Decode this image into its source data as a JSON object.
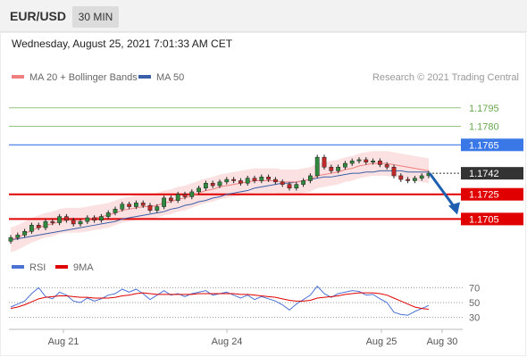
{
  "header": {
    "symbol": "EUR/USD",
    "timeframe": "30 MIN",
    "datetime": "Wednesday, August 25, 2021 7:01:33 AM CET"
  },
  "chart_data": {
    "type": "candlestick",
    "legend": [
      {
        "label": "MA 20 + Bollinger Bands",
        "color": "#f08080"
      },
      {
        "label": "MA 50",
        "color": "#3a5fa8"
      }
    ],
    "credit": "Research © 2021 Trading Central",
    "x_ticks": [
      "Aug 21",
      "Aug 24",
      "Aug 25",
      "Aug 30"
    ],
    "y_range": [
      1.168,
      1.181
    ],
    "levels": [
      {
        "label": "1.1795",
        "value": 1.1795,
        "color": "#6aa84f",
        "style": "thin"
      },
      {
        "label": "1.1780",
        "value": 1.178,
        "color": "#6aa84f",
        "style": "thin"
      },
      {
        "label": "1.1765",
        "value": 1.1765,
        "color": "#3b78e7",
        "style": "resistance"
      },
      {
        "label": "1.1742",
        "value": 1.1742,
        "color": "#333333",
        "style": "last"
      },
      {
        "label": "1.1725",
        "value": 1.1725,
        "color": "#e00000",
        "style": "support"
      },
      {
        "label": "1.1705",
        "value": 1.1705,
        "color": "#e00000",
        "style": "support"
      }
    ],
    "forecast_arrow": {
      "from": 1.1742,
      "to": 1.171,
      "color": "#1f5fb0"
    },
    "close_path": [
      1.169,
      1.1692,
      1.1695,
      1.17,
      1.1698,
      1.1703,
      1.1702,
      1.1707,
      1.1704,
      1.1701,
      1.1703,
      1.1706,
      1.1704,
      1.1707,
      1.171,
      1.1713,
      1.1717,
      1.1715,
      1.1718,
      1.1716,
      1.1712,
      1.1715,
      1.1722,
      1.172,
      1.1725,
      1.1723,
      1.1727,
      1.173,
      1.1734,
      1.1732,
      1.1735,
      1.1737,
      1.1736,
      1.1734,
      1.1738,
      1.1736,
      1.1739,
      1.1737,
      1.1735,
      1.1733,
      1.173,
      1.1733,
      1.1736,
      1.174,
      1.1755,
      1.1747,
      1.1744,
      1.1747,
      1.175,
      1.1752,
      1.1753,
      1.1751,
      1.1752,
      1.1749,
      1.1747,
      1.174,
      1.1737,
      1.1736,
      1.1738,
      1.174,
      1.1742
    ],
    "ma20": [
      1.1688,
      1.169,
      1.1693,
      1.1696,
      1.1698,
      1.17,
      1.1701,
      1.1703,
      1.1704,
      1.1704,
      1.1704,
      1.1705,
      1.1706,
      1.1707,
      1.1708,
      1.171,
      1.1712,
      1.1713,
      1.1714,
      1.1715,
      1.1715,
      1.1716,
      1.1718,
      1.1719,
      1.1721,
      1.1722,
      1.1724,
      1.1726,
      1.1728,
      1.1729,
      1.1731,
      1.1732,
      1.1733,
      1.1734,
      1.1735,
      1.1736,
      1.1736,
      1.1736,
      1.1736,
      1.1735,
      1.1735,
      1.1735,
      1.1736,
      1.1737,
      1.174,
      1.1741,
      1.1742,
      1.1743,
      1.1745,
      1.1746,
      1.1748,
      1.1749,
      1.175,
      1.175,
      1.175,
      1.1749,
      1.1748,
      1.1747,
      1.1746,
      1.1745,
      1.1744
    ],
    "ma50": [
      1.1688,
      1.1689,
      1.169,
      1.1691,
      1.1692,
      1.1693,
      1.1694,
      1.1695,
      1.1696,
      1.1697,
      1.1698,
      1.1699,
      1.17,
      1.1701,
      1.1702,
      1.1703,
      1.1705,
      1.1706,
      1.1707,
      1.1708,
      1.1709,
      1.171,
      1.1711,
      1.1713,
      1.1714,
      1.1716,
      1.1717,
      1.1719,
      1.172,
      1.1722,
      1.1723,
      1.1725,
      1.1726,
      1.1727,
      1.1728,
      1.173,
      1.1731,
      1.1732,
      1.1733,
      1.1734,
      1.1734,
      1.1735,
      1.1736,
      1.1737,
      1.1738,
      1.1739,
      1.1739,
      1.174,
      1.1741,
      1.1742,
      1.1742,
      1.1743,
      1.1743,
      1.1744,
      1.1744,
      1.1744,
      1.1744,
      1.1743,
      1.1743,
      1.1743,
      1.1743
    ],
    "bb_width": 0.001,
    "rsi_panel": {
      "legend": [
        {
          "label": "RSI",
          "color": "#4a72d4"
        },
        {
          "label": "9MA",
          "color": "#e00000"
        }
      ],
      "y_ticks": [
        "70",
        "50",
        "30"
      ],
      "y_range": [
        20,
        80
      ],
      "rsi": [
        44,
        48,
        52,
        62,
        70,
        58,
        55,
        64,
        60,
        52,
        50,
        56,
        52,
        55,
        60,
        62,
        68,
        64,
        68,
        62,
        54,
        60,
        66,
        60,
        62,
        58,
        62,
        64,
        66,
        60,
        62,
        64,
        60,
        56,
        60,
        54,
        58,
        55,
        52,
        47,
        40,
        48,
        54,
        60,
        72,
        62,
        57,
        62,
        64,
        66,
        65,
        60,
        61,
        55,
        50,
        37,
        34,
        33,
        38,
        42,
        46
      ],
      "ma9": [
        42,
        44,
        47,
        51,
        55,
        57,
        58,
        59,
        59,
        58,
        57,
        57,
        56,
        56,
        56,
        57,
        59,
        60,
        62,
        63,
        62,
        61,
        61,
        61,
        61,
        61,
        61,
        62,
        62,
        62,
        62,
        62,
        62,
        61,
        61,
        60,
        59,
        58,
        57,
        55,
        53,
        52,
        52,
        53,
        56,
        57,
        58,
        59,
        61,
        62,
        63,
        63,
        63,
        62,
        60,
        56,
        52,
        48,
        44,
        42,
        41
      ]
    }
  }
}
